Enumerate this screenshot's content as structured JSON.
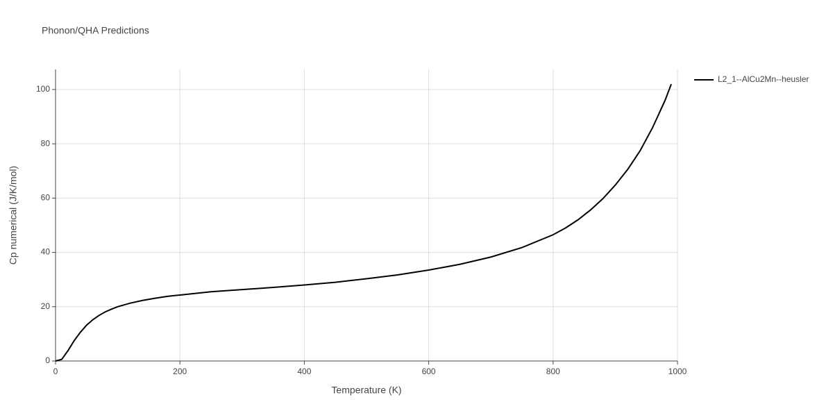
{
  "chart_data": {
    "type": "line",
    "title": "Phonon/QHA Predictions",
    "x_label": "Temperature (K)",
    "y_label": "Cp numerical (J/K/mol)",
    "x": [
      0,
      10,
      20,
      30,
      40,
      50,
      60,
      70,
      80,
      90,
      100,
      120,
      140,
      160,
      180,
      200,
      250,
      300,
      350,
      400,
      450,
      500,
      550,
      600,
      650,
      700,
      750,
      800,
      820,
      840,
      860,
      880,
      900,
      920,
      940,
      960,
      980,
      990
    ],
    "series": [
      {
        "name": "L2_1--AlCu2Mn--heusler",
        "color": "#000000",
        "values": [
          0,
          0.6,
          3.8,
          7.5,
          10.6,
          13.2,
          15.2,
          16.8,
          18.1,
          19.1,
          20.0,
          21.3,
          22.3,
          23.1,
          23.8,
          24.3,
          25.5,
          26.3,
          27.1,
          28.0,
          29.0,
          30.3,
          31.7,
          33.5,
          35.6,
          38.3,
          41.8,
          46.5,
          49.0,
          52.0,
          55.6,
          59.8,
          64.8,
          70.6,
          77.5,
          86.0,
          96.0,
          102.0
        ]
      }
    ],
    "xlim": [
      0,
      1000
    ],
    "xticks": [
      0,
      200,
      400,
      600,
      800,
      1000
    ],
    "ylim": [
      0,
      107.4
    ],
    "yticks": [
      0,
      20,
      40,
      60,
      80,
      100
    ],
    "grid": true,
    "legend": "top-right"
  }
}
